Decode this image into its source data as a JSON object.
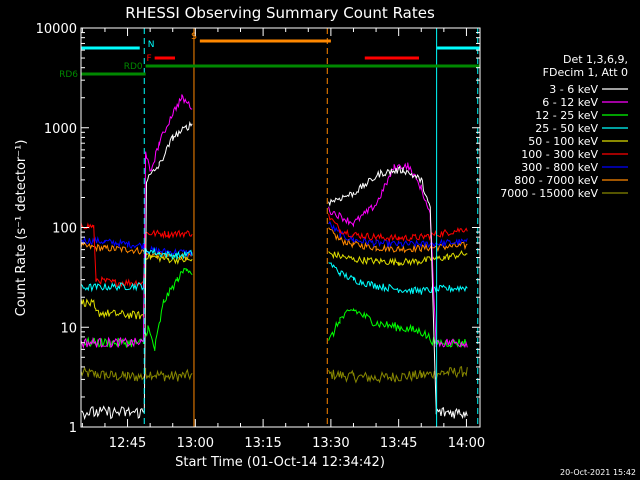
{
  "chart_data": {
    "type": "line",
    "title": "RHESSI Observing Summary Count Rates",
    "xlabel": "Start Time (01-Oct-14 12:34:42)",
    "ylabel": "Count Rate (s⁻¹ detector⁻¹)",
    "yscale": "log",
    "ylim": [
      1,
      10000
    ],
    "xlim_minutes_of_day": [
      754.7,
      843.0
    ],
    "x_ticks": [
      {
        "label": "12:45",
        "value": 765
      },
      {
        "label": "13:00",
        "value": 780
      },
      {
        "label": "13:15",
        "value": 795
      },
      {
        "label": "13:30",
        "value": 810
      },
      {
        "label": "13:45",
        "value": 825
      },
      {
        "label": "14:00",
        "value": 840
      }
    ],
    "y_ticks": [
      {
        "label": "1",
        "value": 1
      },
      {
        "label": "10",
        "value": 10
      },
      {
        "label": "100",
        "value": 100
      },
      {
        "label": "1000",
        "value": 1000
      },
      {
        "label": "10000",
        "value": 10000
      }
    ],
    "legend": {
      "header": [
        "Det 1,3,6,9,",
        "FDecim 1, Att 0"
      ],
      "placement": "right"
    },
    "series": [
      {
        "name": "3 - 6 keV",
        "color": "#ffffff",
        "day": [
          [
            754.7,
            1.4
          ],
          [
            768.7,
            1.4
          ],
          [
            769.2,
            300
          ],
          [
            772,
            420
          ],
          [
            775,
            800
          ],
          [
            778,
            1000
          ],
          [
            779.3,
            1100
          ]
        ],
        "night": [
          [
            809.5,
            180
          ],
          [
            815,
            220
          ],
          [
            821,
            350
          ],
          [
            826,
            380
          ],
          [
            830,
            300
          ],
          [
            832,
            150
          ],
          [
            833.3,
            1.4
          ],
          [
            840.2,
            1.4
          ]
        ]
      },
      {
        "name": "6 - 12 keV",
        "color": "#ff00ff",
        "day": [
          [
            754.7,
            7
          ],
          [
            768.5,
            7
          ],
          [
            769,
            600
          ],
          [
            770,
            350
          ],
          [
            772,
            700
          ],
          [
            775,
            1400
          ],
          [
            777,
            2000
          ],
          [
            779.3,
            1600
          ]
        ],
        "night": [
          [
            809.5,
            150
          ],
          [
            815,
            110
          ],
          [
            820,
            170
          ],
          [
            824,
            400
          ],
          [
            827,
            420
          ],
          [
            830,
            250
          ],
          [
            832,
            130
          ],
          [
            833.3,
            7
          ],
          [
            840.2,
            7
          ]
        ]
      },
      {
        "name": "12 - 25 keV",
        "color": "#00ff00",
        "day": [
          [
            754.7,
            7
          ],
          [
            768.5,
            7
          ],
          [
            769.5,
            10
          ],
          [
            771,
            6
          ],
          [
            773,
            18
          ],
          [
            776,
            30
          ],
          [
            778,
            40
          ],
          [
            779.3,
            35
          ]
        ],
        "night": [
          [
            809.5,
            7
          ],
          [
            812,
            12
          ],
          [
            815,
            15
          ],
          [
            820,
            11
          ],
          [
            825,
            10
          ],
          [
            830,
            9
          ],
          [
            833.3,
            7
          ],
          [
            840.2,
            7
          ]
        ]
      },
      {
        "name": "25 - 50 keV",
        "color": "#00ffff",
        "day": [
          [
            754.7,
            25
          ],
          [
            768.5,
            26
          ],
          [
            769,
            60
          ],
          [
            772,
            55
          ],
          [
            776,
            52
          ],
          [
            779.3,
            55
          ]
        ],
        "night": [
          [
            809.5,
            45
          ],
          [
            812,
            35
          ],
          [
            815,
            30
          ],
          [
            820,
            26
          ],
          [
            825,
            24
          ],
          [
            830,
            23
          ],
          [
            833.3,
            24
          ],
          [
            840.2,
            25
          ]
        ]
      },
      {
        "name": "50 - 100 keV",
        "color": "#dddd00",
        "day": [
          [
            754.7,
            18
          ],
          [
            757.5,
            17
          ],
          [
            758,
            14
          ],
          [
            768.5,
            13
          ],
          [
            769,
            52
          ],
          [
            774,
            48
          ],
          [
            779.3,
            47
          ]
        ],
        "night": [
          [
            809.5,
            55
          ],
          [
            815,
            48
          ],
          [
            820,
            46
          ],
          [
            825,
            45
          ],
          [
            830,
            46
          ],
          [
            835,
            50
          ],
          [
            840.2,
            55
          ]
        ]
      },
      {
        "name": "100 - 300 keV",
        "color": "#ff0000",
        "day": [
          [
            754.7,
            105
          ],
          [
            757.5,
            102
          ],
          [
            758,
            30
          ],
          [
            762,
            28
          ],
          [
            768.5,
            28
          ],
          [
            769,
            88
          ],
          [
            774,
            86
          ],
          [
            779.3,
            88
          ]
        ],
        "night": [
          [
            809.5,
            130
          ],
          [
            812,
            95
          ],
          [
            815,
            85
          ],
          [
            820,
            80
          ],
          [
            825,
            78
          ],
          [
            830,
            80
          ],
          [
            835,
            88
          ],
          [
            840.2,
            98
          ]
        ]
      },
      {
        "name": "300 - 800 keV",
        "color": "#0000ff",
        "day": [
          [
            754.7,
            75
          ],
          [
            760,
            72
          ],
          [
            765,
            68
          ],
          [
            768.5,
            66
          ],
          [
            769,
            60
          ],
          [
            774,
            57
          ],
          [
            779.3,
            56
          ]
        ],
        "night": [
          [
            809.5,
            110
          ],
          [
            812,
            85
          ],
          [
            815,
            75
          ],
          [
            820,
            70
          ],
          [
            825,
            68
          ],
          [
            830,
            68
          ],
          [
            835,
            70
          ],
          [
            840.2,
            72
          ]
        ]
      },
      {
        "name": "800 - 7000 keV",
        "color": "#ff8800",
        "day": [
          [
            754.7,
            65
          ],
          [
            760,
            62
          ],
          [
            765,
            60
          ],
          [
            768.5,
            58
          ],
          [
            769,
            54
          ],
          [
            774,
            52
          ],
          [
            779.3,
            51
          ]
        ],
        "night": [
          [
            809.5,
            95
          ],
          [
            812,
            75
          ],
          [
            815,
            68
          ],
          [
            820,
            63
          ],
          [
            825,
            61
          ],
          [
            830,
            62
          ],
          [
            835,
            64
          ],
          [
            840.2,
            66
          ]
        ]
      },
      {
        "name": "7000 - 15000 keV",
        "color": "#888800",
        "day": [
          [
            754.7,
            3.5
          ],
          [
            760,
            3.3
          ],
          [
            765,
            3.2
          ],
          [
            768.5,
            3.2
          ],
          [
            769,
            3.5
          ],
          [
            774,
            3.2
          ],
          [
            779.3,
            3.3
          ]
        ],
        "night": [
          [
            809.5,
            3.4
          ],
          [
            815,
            3.2
          ],
          [
            820,
            3.1
          ],
          [
            825,
            3.2
          ],
          [
            830,
            3.3
          ],
          [
            835,
            3.5
          ],
          [
            840.2,
            3.6
          ]
        ]
      }
    ],
    "attenuator_bars": [
      {
        "label": "RD6",
        "color": "#008800",
        "x": [
          754.7,
          769
        ],
        "level": "lowest"
      },
      {
        "label": "RD0",
        "color": "#008800",
        "x": [
          769,
          843
        ],
        "level": "low"
      },
      {
        "label": "N",
        "color": "#00ffff",
        "x": [
          [
            754.7,
            767.7
          ],
          [
            833.5,
            843
          ]
        ],
        "level": "mid"
      },
      {
        "label": "F",
        "color": "#ff0000",
        "x": [
          [
            771,
            775.5
          ],
          [
            817.5,
            829.5
          ]
        ],
        "level": "mid-low"
      },
      {
        "label": "S",
        "color": "#ff8800",
        "x": [
          781,
          810
        ],
        "level": "top"
      }
    ],
    "vertical_markers": [
      {
        "x": 754.7,
        "color": "#00ffff",
        "style": "solid"
      },
      {
        "x": 768.7,
        "color": "#00ffff",
        "style": "dashed"
      },
      {
        "x": 779.7,
        "color": "#ff8800",
        "style": "solid"
      },
      {
        "x": 809.2,
        "color": "#ff8800",
        "style": "dashed"
      },
      {
        "x": 833.4,
        "color": "#00ffff",
        "style": "solid"
      },
      {
        "x": 842.5,
        "color": "#00ffff",
        "style": "dashed"
      }
    ]
  },
  "footer": {
    "timestamp": "20-Oct-2021 15:42"
  }
}
